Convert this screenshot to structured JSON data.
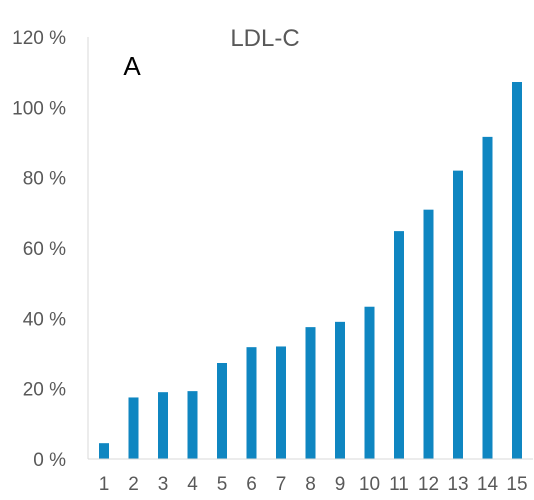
{
  "chart_data": {
    "type": "bar",
    "title": "LDL-C",
    "panel_label": "A",
    "xlabel": "",
    "ylabel": "",
    "categories": [
      "1",
      "2",
      "3",
      "4",
      "5",
      "6",
      "7",
      "8",
      "9",
      "10",
      "11",
      "12",
      "13",
      "14",
      "15"
    ],
    "values": [
      4.5,
      17.5,
      19,
      19.3,
      27.3,
      31.8,
      32,
      37.5,
      39,
      43.3,
      64.8,
      70.9,
      82,
      91.6,
      107.2
    ],
    "value_unit": "%",
    "ylim": [
      0,
      120
    ],
    "yticks": [
      0,
      20,
      40,
      60,
      80,
      100,
      120
    ],
    "ytick_labels": [
      "0 %",
      "20 %",
      "40 %",
      "60 %",
      "80 %",
      "100 %",
      "120 %"
    ],
    "grid": false,
    "legend": "none",
    "bar_color": "#0f86c1",
    "axis_color": "#d9d9d9",
    "text_color": "#595959"
  }
}
